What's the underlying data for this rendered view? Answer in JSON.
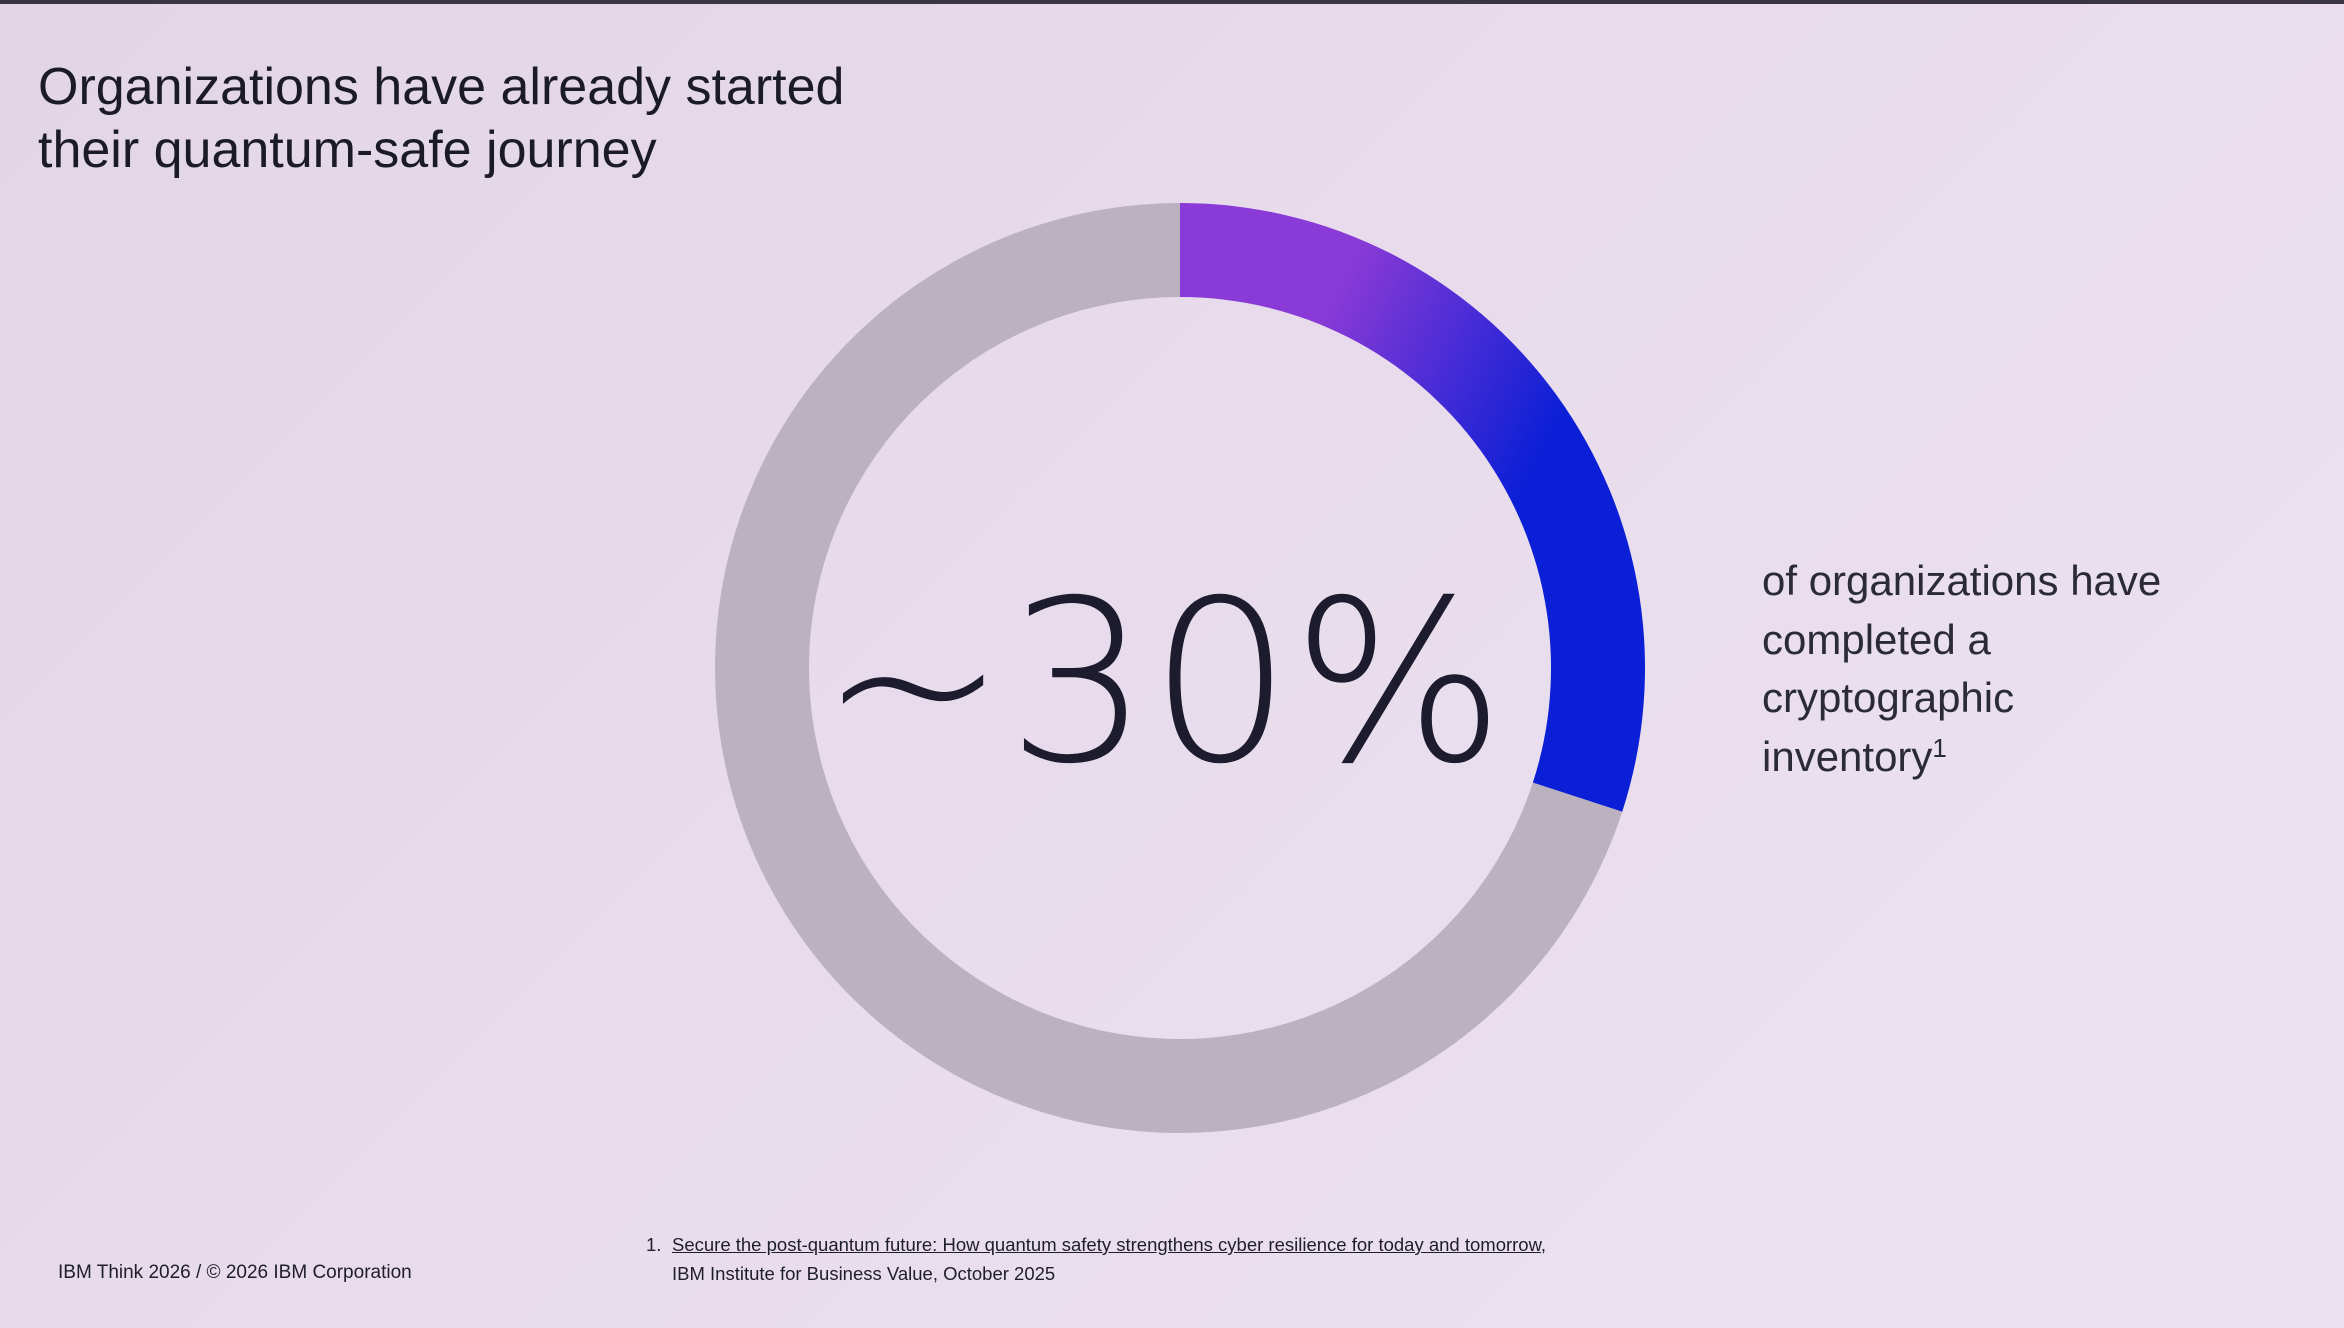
{
  "slide": {
    "title_line1": "Organizations have already started",
    "title_line2": "their quantum-safe journey",
    "caption_text": "of organizations have completed a cryptographic inventory",
    "caption_superscript": "1",
    "footer_left": "IBM Think 2026 / © 2026 IBM Corporation",
    "footnote_number": "1.",
    "footnote_link": "Secure the post-quantum future: How quantum safety strengthens cyber resilience for today and tomorrow,",
    "footnote_source": "IBM Institute for Business Value, October 2025"
  },
  "chart_data": {
    "type": "pie",
    "variant": "donut",
    "center_label": "~30%",
    "slices": [
      {
        "value": 30,
        "color_start": "#8a3ad6",
        "color_end": "#0b1fd6"
      },
      {
        "value": 70,
        "color": "#bcb2bf"
      }
    ],
    "start_angle": "12 o'clock",
    "direction": "clockwise",
    "legend": "none"
  },
  "colors": {
    "background": "#e8dcec",
    "text": "#1b1b26",
    "accent_purple": "#8a3ad6",
    "accent_blue": "#0b1fd6",
    "track_gray": "#bcb2bf"
  }
}
